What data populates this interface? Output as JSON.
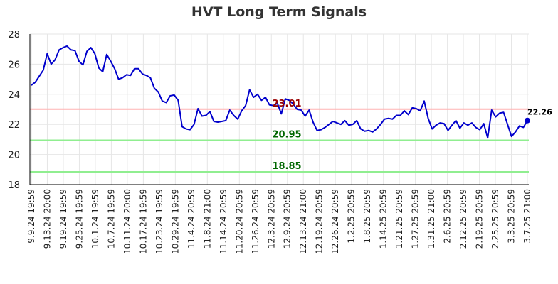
{
  "chart_data": {
    "type": "line",
    "title": "HVT Long Term Signals",
    "xlabel": "",
    "ylabel": "",
    "ylim": [
      18,
      28
    ],
    "y_ticks": [
      18,
      20,
      22,
      24,
      26,
      28
    ],
    "x_tick_labels": [
      "9.9.24 19:59",
      "9.13.24 20:00",
      "9.19.24 19:59",
      "9.25.24 19:59",
      "10.1.24 19:59",
      "10.7.24 19:59",
      "10.11.24 20:00",
      "10.17.24 19:59",
      "10.23.24 19:59",
      "10.29.24 19:59",
      "11.4.24 20:59",
      "11.8.24 21:00",
      "11.14.24 20:59",
      "11.20.24 20:59",
      "11.26.24 20:59",
      "12.3.24 20:59",
      "12.9.24 20:59",
      "12.13.24 21:00",
      "12.19.24 20:59",
      "12.26.24 20:59",
      "1.2.25 20:59",
      "1.8.25 20:59",
      "1.14.25 20:59",
      "1.21.25 20:59",
      "1.27.25 20:59",
      "1.31.25 21:00",
      "2.6.25 20:59",
      "2.12.25 20:59",
      "2.19.25 20:59",
      "2.25.25 20:59",
      "3.3.25 20:59",
      "3.7.25 21:00"
    ],
    "grid": true,
    "series": [
      {
        "color": "#0000cc",
        "values": [
          24.6,
          24.8,
          25.2,
          25.6,
          26.7,
          26.0,
          26.3,
          26.95,
          27.1,
          27.2,
          26.95,
          26.9,
          26.2,
          25.95,
          26.85,
          27.1,
          26.7,
          25.75,
          25.5,
          26.65,
          26.2,
          25.7,
          25.0,
          25.1,
          25.3,
          25.25,
          25.7,
          25.7,
          25.35,
          25.25,
          25.1,
          24.4,
          24.15,
          23.55,
          23.45,
          23.9,
          23.95,
          23.6,
          21.85,
          21.7,
          21.65,
          22.0,
          23.05,
          22.55,
          22.6,
          22.85,
          22.2,
          22.15,
          22.2,
          22.25,
          22.95,
          22.6,
          22.35,
          22.9,
          23.25,
          24.3,
          23.8,
          24.0,
          23.6,
          23.8,
          23.3,
          23.25,
          23.4,
          22.7,
          23.7,
          23.6,
          23.35,
          23.0,
          22.95,
          22.55,
          22.95,
          22.15,
          21.6,
          21.65,
          21.8,
          22.0,
          22.2,
          22.1,
          22.0,
          22.25,
          21.95,
          22.0,
          22.25,
          21.7,
          21.55,
          21.6,
          21.5,
          21.7,
          22.0,
          22.35,
          22.4,
          22.35,
          22.6,
          22.6,
          22.9,
          22.65,
          23.1,
          23.05,
          22.9,
          23.55,
          22.4,
          21.7,
          21.95,
          22.1,
          22.05,
          21.6,
          21.95,
          22.25,
          21.75,
          22.1,
          21.95,
          22.1,
          21.8,
          21.65,
          22.05,
          21.1,
          22.95,
          22.5,
          22.75,
          22.8,
          22.0,
          21.2,
          21.5,
          21.9,
          21.8,
          22.26
        ]
      }
    ],
    "levels": [
      {
        "value": 23.01,
        "label": "23.01",
        "line_color": "#ffb3b3",
        "text_color": "#990000"
      },
      {
        "value": 20.95,
        "label": "20.95",
        "line_color": "#90ee90",
        "text_color": "#006600"
      },
      {
        "value": 18.85,
        "label": "18.85",
        "line_color": "#90ee90",
        "text_color": "#006600"
      }
    ],
    "last_value_label": "22.26"
  }
}
